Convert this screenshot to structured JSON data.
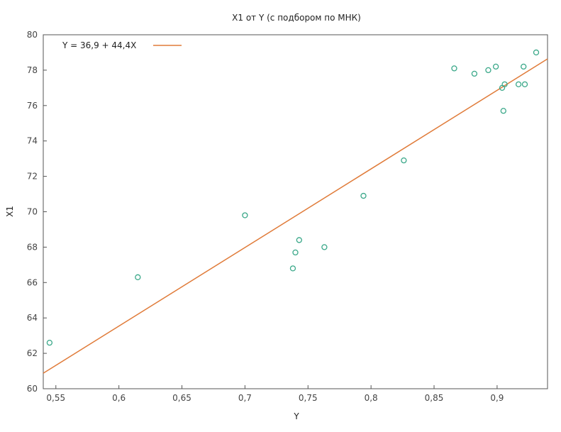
{
  "chart_data": {
    "type": "scatter",
    "title": "X1 от Y (с подбором по МНК)",
    "xlabel": "Y",
    "ylabel": "X1",
    "xlim": [
      0.54,
      0.94
    ],
    "ylim": [
      60,
      80
    ],
    "x_ticks": [
      0.55,
      0.6,
      0.65,
      0.7,
      0.75,
      0.8,
      0.85,
      0.9
    ],
    "x_tick_labels": [
      "0,55",
      "0,6",
      "0,65",
      "0,7",
      "0,75",
      "0,8",
      "0,85",
      "0,9"
    ],
    "y_ticks": [
      60,
      62,
      64,
      66,
      68,
      70,
      72,
      74,
      76,
      78,
      80
    ],
    "y_tick_labels": [
      "60",
      "62",
      "64",
      "66",
      "68",
      "70",
      "72",
      "74",
      "76",
      "78",
      "80"
    ],
    "grid": false,
    "legend_position": "top-left",
    "series": [
      {
        "kind": "points",
        "color": "#3aa889",
        "x": [
          0.545,
          0.615,
          0.7,
          0.738,
          0.74,
          0.743,
          0.763,
          0.794,
          0.826,
          0.866,
          0.882,
          0.893,
          0.899,
          0.904,
          0.905,
          0.906,
          0.917,
          0.921,
          0.922,
          0.931
        ],
        "y": [
          62.6,
          66.3,
          69.8,
          66.8,
          67.7,
          68.4,
          68.0,
          70.9,
          72.9,
          78.1,
          77.8,
          78.0,
          78.2,
          77.0,
          75.7,
          77.2,
          77.2,
          78.2,
          77.2,
          79.0
        ]
      },
      {
        "kind": "fit-line",
        "name": "Y = 36,9 + 44,4X",
        "color": "#e07b39",
        "intercept": 36.9,
        "slope": 44.4
      }
    ]
  }
}
